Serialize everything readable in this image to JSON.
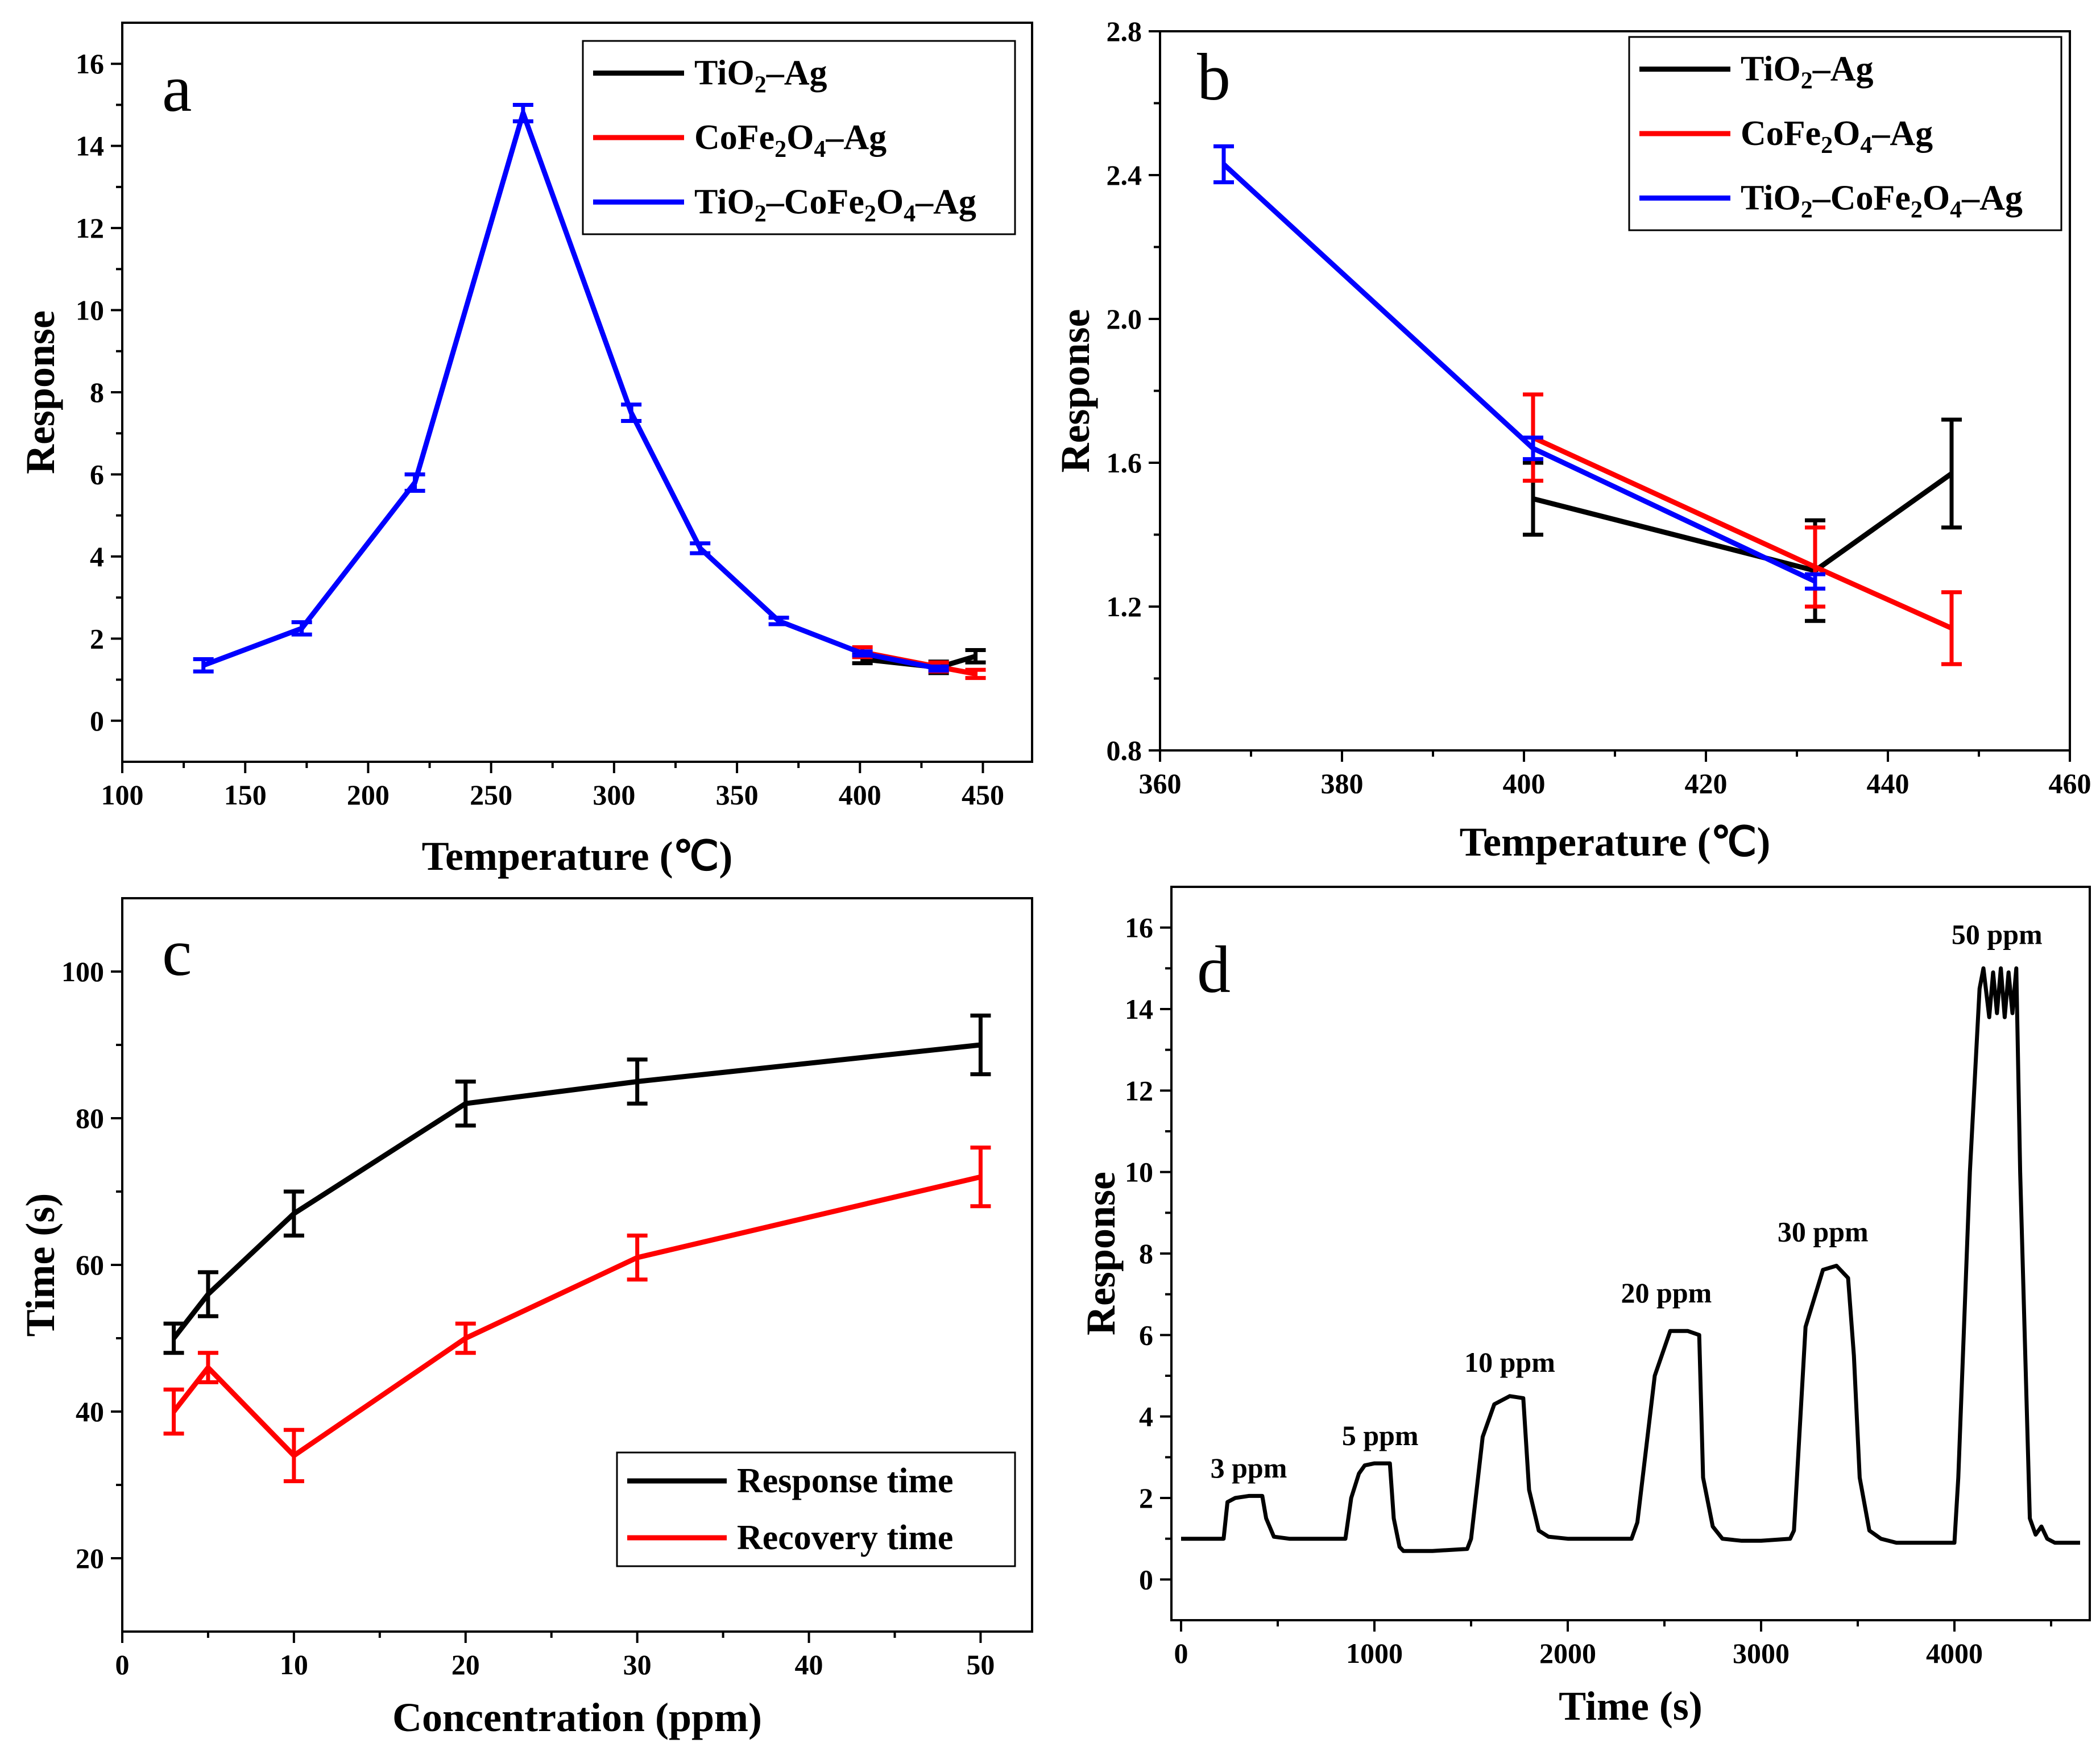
{
  "chart_data": [
    {
      "panel": "a",
      "type": "line",
      "xlabel": "Temperature (℃)",
      "ylabel": "Response",
      "xlim": [
        100,
        470
      ],
      "ylim": [
        -1,
        17
      ],
      "xticks": [
        "100",
        "150",
        "200",
        "250",
        "300",
        "350",
        "400",
        "450"
      ],
      "yticks": [
        "0",
        "2",
        "4",
        "6",
        "8",
        "10",
        "12",
        "14",
        "16"
      ],
      "legend_position": "top-right",
      "series": [
        {
          "name": "TiO2–Ag",
          "legend_main": "TiO",
          "legend_parts": [
            [
              "sub",
              "2"
            ],
            [
              "",
              "–Ag"
            ]
          ],
          "color": "#000000",
          "x": [
            401,
            432,
            447
          ],
          "y": [
            1.5,
            1.3,
            1.57
          ],
          "err": [
            0.1,
            0.14,
            0.15
          ]
        },
        {
          "name": "CoFe2O4–Ag",
          "legend_main": "CoFe",
          "legend_parts": [
            [
              "sub",
              "2"
            ],
            [
              "",
              "O"
            ],
            [
              "sub",
              "4"
            ],
            [
              "",
              "–Ag"
            ]
          ],
          "color": "#ff0000",
          "x": [
            401,
            432,
            447
          ],
          "y": [
            1.67,
            1.31,
            1.14
          ],
          "err": [
            0.12,
            0.11,
            0.1
          ]
        },
        {
          "name": "TiO2–CoFe2O4–Ag",
          "legend_main": "TiO",
          "legend_parts": [
            [
              "sub",
              "2"
            ],
            [
              "",
              "–CoFe"
            ],
            [
              "sub",
              "2"
            ],
            [
              "",
              "O"
            ],
            [
              "sub",
              "4"
            ],
            [
              "",
              "–Ag"
            ]
          ],
          "color": "#0000ff",
          "x": [
            133,
            173,
            219,
            263,
            307,
            335,
            367,
            401,
            432
          ],
          "y": [
            1.35,
            2.25,
            5.8,
            14.8,
            7.5,
            4.2,
            2.43,
            1.64,
            1.27
          ],
          "err": [
            0.15,
            0.15,
            0.2,
            0.2,
            0.2,
            0.12,
            0.08,
            0.05,
            0.05
          ]
        }
      ]
    },
    {
      "panel": "b",
      "type": "line",
      "xlabel": "Temperature (℃)",
      "ylabel": "Response",
      "xlim": [
        360,
        460
      ],
      "ylim": [
        0.8,
        2.8
      ],
      "xticks": [
        "360",
        "380",
        "400",
        "420",
        "440",
        "460"
      ],
      "yticks": [
        "0.8",
        "1.2",
        "1.6",
        "2.0",
        "2.4",
        "2.8"
      ],
      "legend_position": "top-right",
      "series": [
        {
          "name": "TiO2–Ag",
          "legend_main": "TiO",
          "legend_parts": [
            [
              "sub",
              "2"
            ],
            [
              "",
              "–Ag"
            ]
          ],
          "color": "#000000",
          "x": [
            401,
            432,
            447
          ],
          "y": [
            1.5,
            1.3,
            1.57
          ],
          "err": [
            0.1,
            0.14,
            0.15
          ]
        },
        {
          "name": "CoFe2O4–Ag",
          "legend_main": "CoFe",
          "legend_parts": [
            [
              "sub",
              "2"
            ],
            [
              "",
              "O"
            ],
            [
              "sub",
              "4"
            ],
            [
              "",
              "–Ag"
            ]
          ],
          "color": "#ff0000",
          "x": [
            401,
            432,
            447
          ],
          "y": [
            1.67,
            1.31,
            1.14
          ],
          "err": [
            0.12,
            0.11,
            0.1
          ]
        },
        {
          "name": "TiO2–CoFe2O4–Ag",
          "legend_main": "TiO",
          "legend_parts": [
            [
              "sub",
              "2"
            ],
            [
              "",
              "–CoFe"
            ],
            [
              "sub",
              "2"
            ],
            [
              "",
              "O"
            ],
            [
              "sub",
              "4"
            ],
            [
              "",
              "–Ag"
            ]
          ],
          "color": "#0000ff",
          "x": [
            367,
            401,
            432
          ],
          "y": [
            2.43,
            1.64,
            1.27
          ],
          "err": [
            0.05,
            0.03,
            0.02
          ]
        }
      ]
    },
    {
      "panel": "c",
      "type": "line",
      "xlabel": "Concentration (ppm)",
      "ylabel": "Time (s)",
      "xlim": [
        0,
        53
      ],
      "ylim": [
        10,
        110
      ],
      "xticks": [
        "0",
        "10",
        "20",
        "30",
        "40",
        "50"
      ],
      "yticks": [
        "20",
        "40",
        "60",
        "80",
        "100"
      ],
      "legend_position": "bottom-right",
      "series": [
        {
          "name": "Response time",
          "legend_main": "Response time",
          "legend_parts": [],
          "color": "#000000",
          "x": [
            3,
            5,
            10,
            20,
            30,
            50
          ],
          "y": [
            50,
            56,
            67,
            82,
            85,
            90
          ],
          "err": [
            2,
            3,
            3,
            3,
            3,
            4
          ]
        },
        {
          "name": "Recovery time",
          "legend_main": "Recovery time",
          "legend_parts": [],
          "color": "#ff0000",
          "x": [
            3,
            5,
            10,
            20,
            30,
            50
          ],
          "y": [
            40,
            46,
            34,
            50,
            61,
            72
          ],
          "err": [
            3,
            2,
            3.5,
            2,
            3,
            4
          ]
        }
      ]
    },
    {
      "panel": "d",
      "type": "line",
      "xlabel": "Time (s)",
      "ylabel": "Response",
      "xlim": [
        -50,
        4700
      ],
      "ylim": [
        -1,
        17
      ],
      "xticks": [
        "0",
        "1000",
        "2000",
        "3000",
        "4000"
      ],
      "yticks": [
        "0",
        "2",
        "4",
        "6",
        "8",
        "10",
        "12",
        "14",
        "16"
      ],
      "annotations": [
        {
          "text": "3 ppm",
          "x": 350,
          "y": 2.5
        },
        {
          "text": "5 ppm",
          "x": 1030,
          "y": 3.3
        },
        {
          "text": "10 ppm",
          "x": 1700,
          "y": 5.1
        },
        {
          "text": "20 ppm",
          "x": 2510,
          "y": 6.8
        },
        {
          "text": "30 ppm",
          "x": 3320,
          "y": 8.3
        },
        {
          "text": "50 ppm",
          "x": 4220,
          "y": 15.6
        }
      ],
      "series": [
        {
          "name": "Response",
          "color": "#000000",
          "x": [
            0,
            220,
            240,
            280,
            350,
            420,
            440,
            480,
            560,
            850,
            880,
            920,
            950,
            1000,
            1080,
            1100,
            1130,
            1150,
            1300,
            1480,
            1500,
            1560,
            1620,
            1700,
            1770,
            1800,
            1850,
            1900,
            2000,
            2330,
            2360,
            2450,
            2530,
            2620,
            2680,
            2700,
            2750,
            2800,
            2900,
            3000,
            3150,
            3170,
            3230,
            3320,
            3390,
            3450,
            3480,
            3510,
            3560,
            3620,
            3700,
            4000,
            4020,
            4080,
            4130,
            4150,
            4180,
            4200,
            4220,
            4240,
            4260,
            4280,
            4300,
            4320,
            4340,
            4390,
            4420,
            4450,
            4480,
            4500,
            4520,
            4650
          ],
          "y": [
            1.0,
            1.0,
            1.9,
            2.0,
            2.05,
            2.05,
            1.5,
            1.05,
            1.0,
            1.0,
            2.0,
            2.6,
            2.8,
            2.85,
            2.85,
            1.5,
            0.8,
            0.7,
            0.7,
            0.75,
            1.0,
            3.5,
            4.3,
            4.5,
            4.45,
            2.2,
            1.2,
            1.05,
            1.0,
            1.0,
            1.4,
            5.0,
            6.1,
            6.1,
            6.0,
            2.5,
            1.3,
            1.0,
            0.95,
            0.95,
            1.0,
            1.2,
            6.2,
            7.6,
            7.7,
            7.4,
            5.5,
            2.5,
            1.2,
            1.0,
            0.9,
            0.9,
            2.5,
            10.0,
            14.5,
            15.0,
            13.8,
            14.9,
            13.9,
            15.0,
            13.8,
            14.9,
            13.9,
            15.0,
            10.0,
            1.5,
            1.1,
            1.3,
            1.0,
            0.95,
            0.9,
            0.9
          ]
        }
      ]
    }
  ]
}
